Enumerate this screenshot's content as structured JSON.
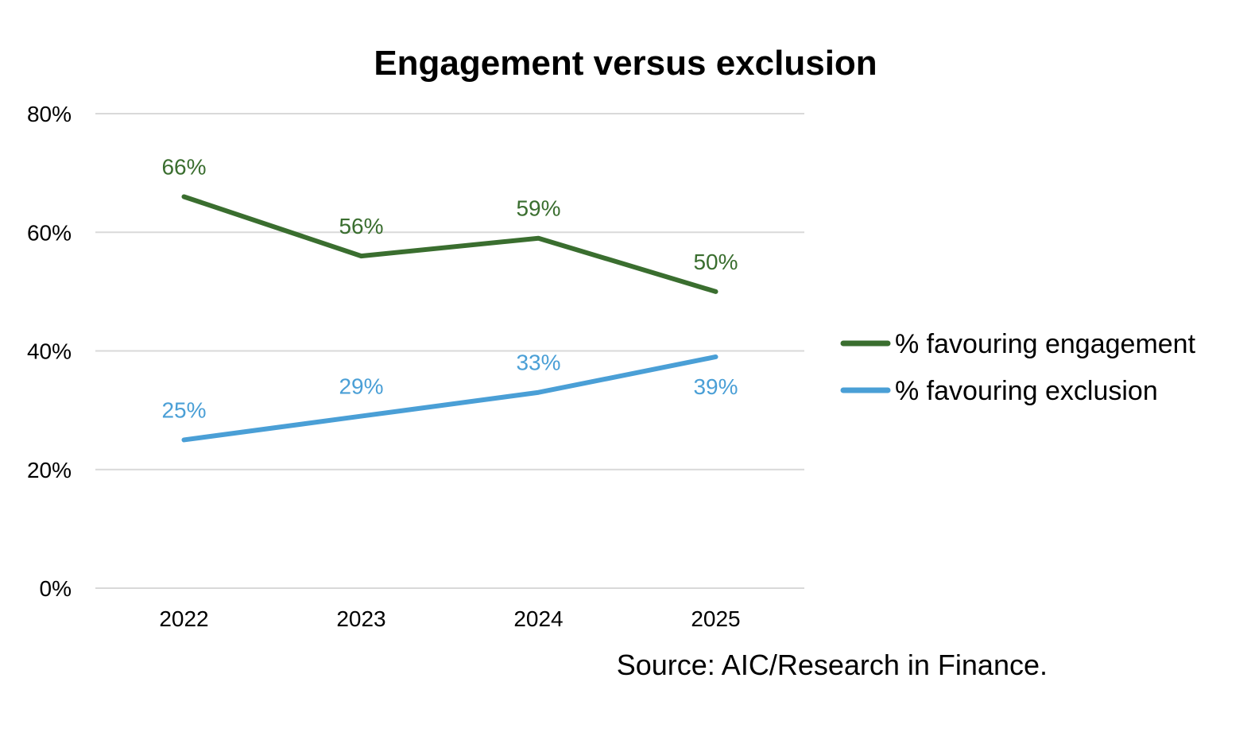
{
  "chart_data": {
    "type": "line",
    "title": "Engagement versus exclusion",
    "xlabel": "",
    "ylabel": "",
    "categories": [
      "2022",
      "2023",
      "2024",
      "2025"
    ],
    "ylim": [
      0,
      80
    ],
    "yticks": [
      0,
      20,
      40,
      60,
      80
    ],
    "ytick_labels": [
      "0%",
      "20%",
      "40%",
      "60%",
      "80%"
    ],
    "grid": true,
    "legend_position": "right",
    "series": [
      {
        "name": "% favouring engagement",
        "color": "#3a6e2f",
        "values": [
          66,
          56,
          59,
          50
        ],
        "labels": [
          "66%",
          "56%",
          "59%",
          "50%"
        ]
      },
      {
        "name": "% favouring exclusion",
        "color": "#4a9fd6",
        "values": [
          25,
          29,
          33,
          39
        ],
        "labels": [
          "25%",
          "29%",
          "33%",
          "39%"
        ]
      }
    ],
    "source": "Source: AIC/Research in Finance."
  }
}
